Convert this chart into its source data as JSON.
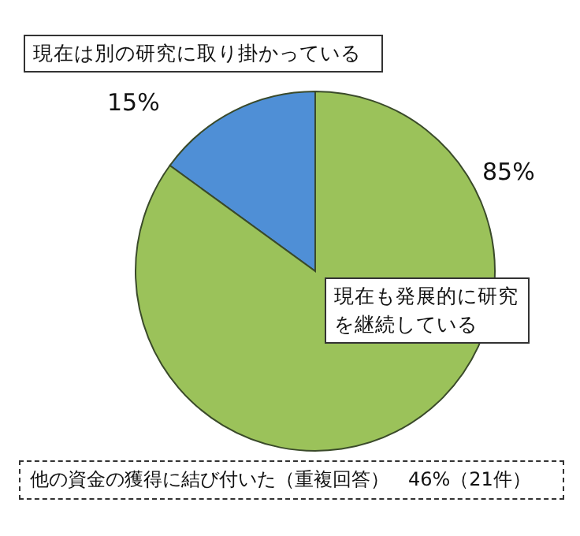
{
  "chart_data": {
    "type": "pie",
    "categories": [
      "現在は別の研究に取り掛かっている",
      "現在も発展的に研究を継続している"
    ],
    "values": [
      15,
      85
    ],
    "colors": [
      "#4f8fd6",
      "#9bc25a"
    ],
    "value_labels": [
      "15%",
      "85%"
    ],
    "annotations": [
      "他の資金の獲得に結び付いた（重複回答）　46%（21件）"
    ]
  }
}
